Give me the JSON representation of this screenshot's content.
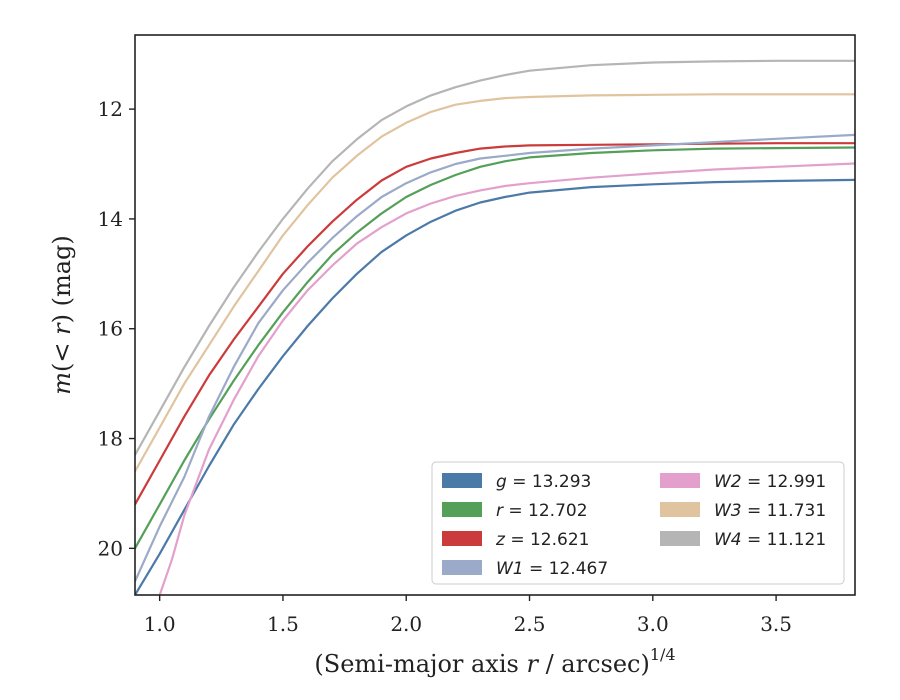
{
  "chart_data": {
    "type": "line",
    "xlabel_main": "(Semi-major axis ",
    "xlabel_var": "r",
    "xlabel_rest": " / arcsec)",
    "xlabel_sup": "1/4",
    "ylabel_main": "m",
    "ylabel_paren": "(< ",
    "ylabel_var": "r",
    "ylabel_rest": ") (mag)",
    "xlim": [
      0.9,
      3.82
    ],
    "ylim": [
      20.85,
      10.65
    ],
    "y_inverted": true,
    "grid": false,
    "x_ticks": [
      "1.0",
      "1.5",
      "2.0",
      "2.5",
      "3.0",
      "3.5"
    ],
    "x_tick_values": [
      1.0,
      1.5,
      2.0,
      2.5,
      3.0,
      3.5
    ],
    "y_ticks": [
      "12",
      "14",
      "16",
      "18",
      "20"
    ],
    "y_tick_values": [
      12,
      14,
      16,
      18,
      20
    ],
    "legend_position": "lower-right",
    "series": [
      {
        "name": "g",
        "value": "13.293",
        "color": "#4c7aa8",
        "x": [
          0.9,
          1.0,
          1.1,
          1.2,
          1.3,
          1.4,
          1.5,
          1.6,
          1.7,
          1.8,
          1.9,
          2.0,
          2.1,
          2.2,
          2.3,
          2.4,
          2.5,
          2.75,
          3.0,
          3.25,
          3.5,
          3.82
        ],
        "y": [
          20.85,
          20.1,
          19.3,
          18.5,
          17.75,
          17.1,
          16.5,
          15.95,
          15.45,
          15.0,
          14.6,
          14.3,
          14.05,
          13.85,
          13.7,
          13.6,
          13.52,
          13.42,
          13.37,
          13.33,
          13.31,
          13.29
        ]
      },
      {
        "name": "r",
        "value": "12.702",
        "color": "#55a058",
        "x": [
          0.9,
          1.0,
          1.1,
          1.2,
          1.3,
          1.4,
          1.5,
          1.6,
          1.7,
          1.8,
          1.9,
          2.0,
          2.1,
          2.2,
          2.3,
          2.4,
          2.5,
          2.75,
          3.0,
          3.25,
          3.5,
          3.82
        ],
        "y": [
          20.0,
          19.2,
          18.4,
          17.65,
          16.95,
          16.3,
          15.7,
          15.15,
          14.65,
          14.25,
          13.9,
          13.6,
          13.38,
          13.2,
          13.05,
          12.95,
          12.88,
          12.8,
          12.75,
          12.72,
          12.71,
          12.7
        ]
      },
      {
        "name": "z",
        "value": "12.621",
        "color": "#cc3b3b",
        "x": [
          0.9,
          1.0,
          1.1,
          1.2,
          1.3,
          1.4,
          1.5,
          1.6,
          1.7,
          1.8,
          1.9,
          2.0,
          2.1,
          2.2,
          2.3,
          2.4,
          2.5,
          2.75,
          3.0,
          3.25,
          3.5,
          3.82
        ],
        "y": [
          19.2,
          18.4,
          17.6,
          16.85,
          16.2,
          15.6,
          15.0,
          14.5,
          14.05,
          13.65,
          13.3,
          13.05,
          12.9,
          12.8,
          12.72,
          12.68,
          12.66,
          12.65,
          12.64,
          12.63,
          12.62,
          12.62
        ]
      },
      {
        "name": "W1",
        "value": "12.467",
        "color": "#9aaac8",
        "x": [
          0.9,
          1.0,
          1.1,
          1.2,
          1.3,
          1.4,
          1.5,
          1.6,
          1.7,
          1.8,
          1.9,
          2.0,
          2.1,
          2.2,
          2.3,
          2.4,
          2.5,
          2.75,
          3.0,
          3.25,
          3.5,
          3.82
        ],
        "y": [
          20.6,
          19.6,
          18.7,
          17.6,
          16.7,
          15.9,
          15.3,
          14.8,
          14.35,
          13.95,
          13.6,
          13.35,
          13.15,
          13.0,
          12.9,
          12.85,
          12.8,
          12.72,
          12.66,
          12.6,
          12.54,
          12.47
        ]
      },
      {
        "name": "W2",
        "value": "12.991",
        "color": "#e3a0cc",
        "x": [
          1.0,
          1.05,
          1.1,
          1.15,
          1.2,
          1.3,
          1.4,
          1.5,
          1.6,
          1.7,
          1.8,
          1.9,
          2.0,
          2.1,
          2.2,
          2.3,
          2.4,
          2.5,
          2.75,
          3.0,
          3.25,
          3.5,
          3.82
        ],
        "y": [
          20.85,
          20.2,
          19.4,
          18.8,
          18.2,
          17.3,
          16.5,
          15.85,
          15.3,
          14.85,
          14.45,
          14.15,
          13.9,
          13.72,
          13.58,
          13.48,
          13.4,
          13.35,
          13.25,
          13.17,
          13.1,
          13.05,
          12.99
        ]
      },
      {
        "name": "W3",
        "value": "11.731",
        "color": "#e0c49f",
        "x": [
          0.9,
          1.0,
          1.1,
          1.2,
          1.3,
          1.4,
          1.5,
          1.6,
          1.7,
          1.8,
          1.9,
          2.0,
          2.1,
          2.2,
          2.3,
          2.4,
          2.5,
          2.75,
          3.0,
          3.25,
          3.5,
          3.82
        ],
        "y": [
          18.6,
          17.8,
          17.0,
          16.3,
          15.6,
          14.95,
          14.3,
          13.75,
          13.25,
          12.85,
          12.5,
          12.25,
          12.05,
          11.92,
          11.85,
          11.8,
          11.78,
          11.75,
          11.74,
          11.73,
          11.73,
          11.73
        ]
      },
      {
        "name": "W4",
        "value": "11.121",
        "color": "#b5b5b5",
        "x": [
          0.9,
          1.0,
          1.1,
          1.2,
          1.3,
          1.4,
          1.5,
          1.6,
          1.7,
          1.8,
          1.9,
          2.0,
          2.1,
          2.2,
          2.3,
          2.4,
          2.5,
          2.75,
          3.0,
          3.25,
          3.5,
          3.82
        ],
        "y": [
          18.3,
          17.5,
          16.7,
          15.95,
          15.25,
          14.6,
          14.0,
          13.45,
          12.95,
          12.55,
          12.2,
          11.95,
          11.75,
          11.6,
          11.48,
          11.38,
          11.3,
          11.2,
          11.15,
          11.13,
          11.12,
          11.12
        ]
      }
    ]
  }
}
